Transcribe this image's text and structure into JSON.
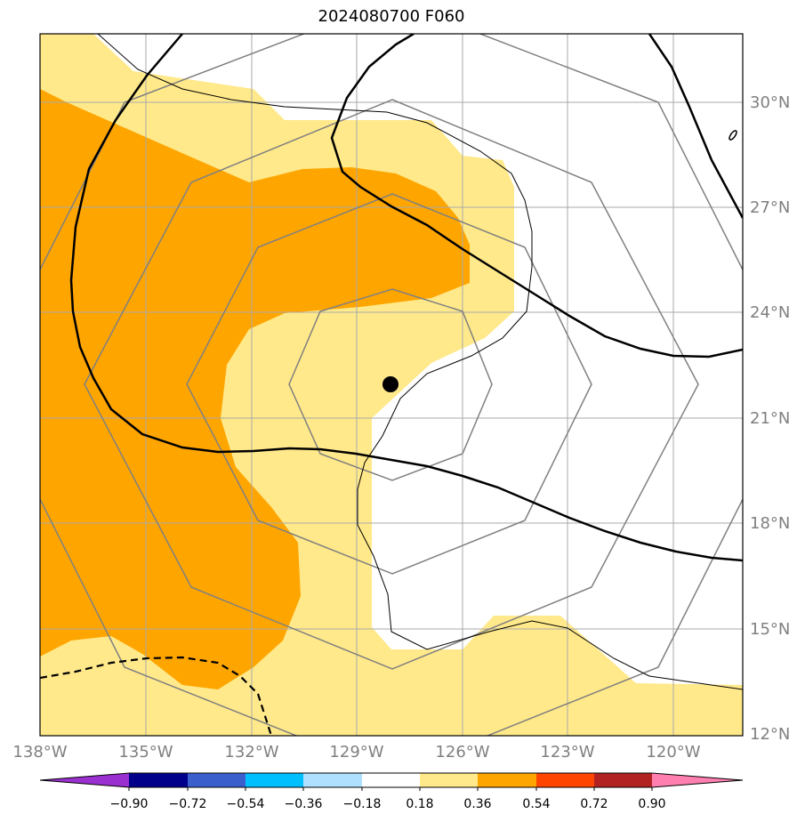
{
  "title": "2024080700 F060",
  "map": {
    "lat_labels": [
      "30°N",
      "27°N",
      "24°N",
      "21°N",
      "18°N",
      "15°N",
      "12°N"
    ],
    "lon_labels": [
      "138°W",
      "135°W",
      "132°W",
      "129°W",
      "126°W",
      "123°W",
      "120°W"
    ],
    "storm_center": {
      "lat": 22.0,
      "lon": -128.0
    }
  },
  "colorbar": {
    "ticks": [
      "−0.90",
      "−0.72",
      "−0.54",
      "−0.36",
      "−0.18",
      "0.18",
      "0.36",
      "0.54",
      "0.72",
      "0.90"
    ],
    "colors": [
      "#9b30d0",
      "#00008b",
      "#3a5fcd",
      "#00bfff",
      "#b0e0ff",
      "#ffffff",
      "#ffe98a",
      "#ffa500",
      "#ff4500",
      "#b22222",
      "#ff80b0"
    ]
  }
}
